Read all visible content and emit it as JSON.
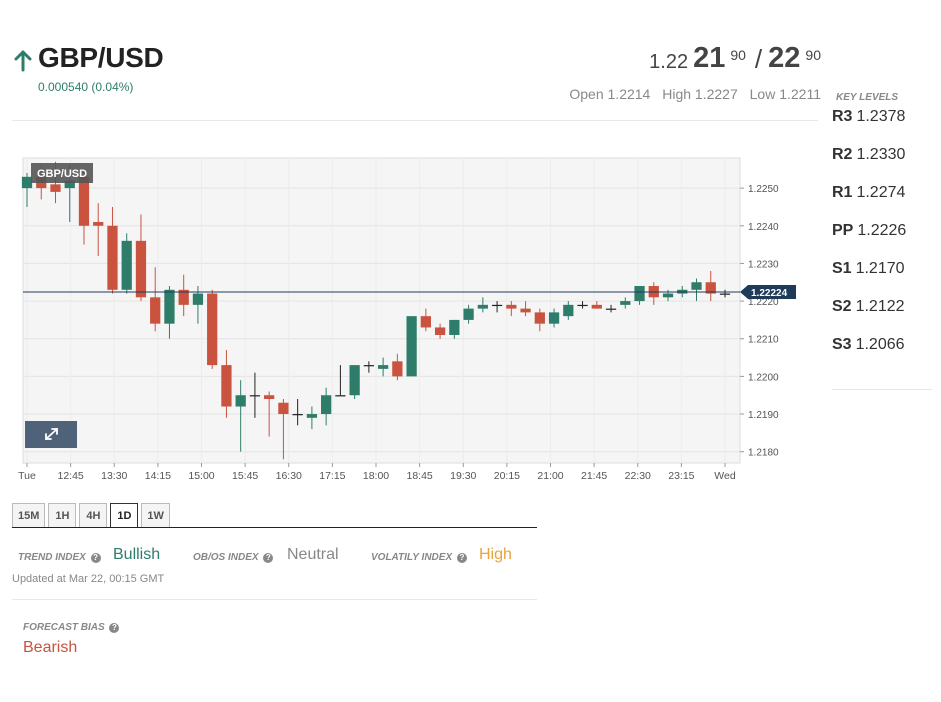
{
  "header": {
    "pair": "GBP/USD",
    "change": "0.000540 (0.04%)",
    "direction_icon": "arrow-up-icon",
    "up_color": "#2e7d6b"
  },
  "quote": {
    "bid_small": "1.22",
    "bid_big": "21",
    "bid_sup": "90",
    "sep": "/",
    "ask_big": "22",
    "ask_sup": "90"
  },
  "ohl": {
    "open": "Open 1.2214",
    "high": "High 1.2227",
    "low": "Low 1.2211"
  },
  "key_levels": {
    "title": "KEY LEVELS",
    "items": [
      {
        "name": "R3",
        "value": "1.2378"
      },
      {
        "name": "R2",
        "value": "1.2330"
      },
      {
        "name": "R1",
        "value": "1.2274"
      },
      {
        "name": "PP",
        "value": "1.2226"
      },
      {
        "name": "S1",
        "value": "1.2170"
      },
      {
        "name": "S2",
        "value": "1.2122"
      },
      {
        "name": "S3",
        "value": "1.2066"
      }
    ]
  },
  "chart_data": {
    "type": "candlestick",
    "title": "GBP/USD",
    "current_price": 1.22224,
    "current_price_label": "1.22224",
    "ylim": [
      1.2177,
      1.2258
    ],
    "y_ticks": [
      "1.2250",
      "1.2240",
      "1.2230",
      "1.2220",
      "1.2210",
      "1.2200",
      "1.2190",
      "1.2180"
    ],
    "x_labels": [
      "Tue",
      "12:45",
      "13:30",
      "14:15",
      "15:00",
      "15:45",
      "16:30",
      "17:15",
      "18:00",
      "18:45",
      "19:30",
      "20:15",
      "21:00",
      "21:45",
      "22:30",
      "23:15",
      "Wed"
    ],
    "grid": true,
    "colors": {
      "up": "#2e7d6b",
      "down": "#c9533f",
      "neutral": "#222222",
      "price_line": "#1f3b5a"
    },
    "candles": [
      {
        "o": 1.225,
        "h": 1.2254,
        "l": 1.2245,
        "c": 1.2253
      },
      {
        "o": 1.2253,
        "h": 1.2256,
        "l": 1.2247,
        "c": 1.225
      },
      {
        "o": 1.2251,
        "h": 1.2257,
        "l": 1.2246,
        "c": 1.2249
      },
      {
        "o": 1.225,
        "h": 1.2256,
        "l": 1.2241,
        "c": 1.2252
      },
      {
        "o": 1.2253,
        "h": 1.2255,
        "l": 1.2235,
        "c": 1.224
      },
      {
        "o": 1.2241,
        "h": 1.2246,
        "l": 1.2232,
        "c": 1.224
      },
      {
        "o": 1.224,
        "h": 1.2245,
        "l": 1.2222,
        "c": 1.2223
      },
      {
        "o": 1.2223,
        "h": 1.2238,
        "l": 1.2222,
        "c": 1.2236
      },
      {
        "o": 1.2236,
        "h": 1.2243,
        "l": 1.222,
        "c": 1.2221
      },
      {
        "o": 1.2221,
        "h": 1.2229,
        "l": 1.2212,
        "c": 1.2214
      },
      {
        "o": 1.2214,
        "h": 1.2224,
        "l": 1.221,
        "c": 1.2223
      },
      {
        "o": 1.2223,
        "h": 1.2227,
        "l": 1.2216,
        "c": 1.2219
      },
      {
        "o": 1.2219,
        "h": 1.2224,
        "l": 1.2214,
        "c": 1.2222
      },
      {
        "o": 1.2222,
        "h": 1.2223,
        "l": 1.2202,
        "c": 1.2203
      },
      {
        "o": 1.2203,
        "h": 1.2207,
        "l": 1.2189,
        "c": 1.2192
      },
      {
        "o": 1.2192,
        "h": 1.2199,
        "l": 1.218,
        "c": 1.2195
      },
      {
        "o": 1.2195,
        "h": 1.2201,
        "l": 1.2189,
        "c": 1.2195
      },
      {
        "o": 1.2195,
        "h": 1.2196,
        "l": 1.2184,
        "c": 1.2194
      },
      {
        "o": 1.2193,
        "h": 1.2194,
        "l": 1.2178,
        "c": 1.219
      },
      {
        "o": 1.219,
        "h": 1.2194,
        "l": 1.2187,
        "c": 1.219
      },
      {
        "o": 1.2189,
        "h": 1.2192,
        "l": 1.2186,
        "c": 1.219
      },
      {
        "o": 1.219,
        "h": 1.2197,
        "l": 1.2187,
        "c": 1.2195
      },
      {
        "o": 1.2195,
        "h": 1.2203,
        "l": 1.2195,
        "c": 1.2195
      },
      {
        "o": 1.2195,
        "h": 1.2203,
        "l": 1.2194,
        "c": 1.2203
      },
      {
        "o": 1.2203,
        "h": 1.2204,
        "l": 1.2201,
        "c": 1.2203
      },
      {
        "o": 1.2202,
        "h": 1.2205,
        "l": 1.22,
        "c": 1.2203
      },
      {
        "o": 1.2204,
        "h": 1.2206,
        "l": 1.2199,
        "c": 1.22
      },
      {
        "o": 1.22,
        "h": 1.2216,
        "l": 1.22,
        "c": 1.2216
      },
      {
        "o": 1.2216,
        "h": 1.2218,
        "l": 1.2212,
        "c": 1.2213
      },
      {
        "o": 1.2213,
        "h": 1.2214,
        "l": 1.221,
        "c": 1.2211
      },
      {
        "o": 1.2211,
        "h": 1.2215,
        "l": 1.221,
        "c": 1.2215
      },
      {
        "o": 1.2215,
        "h": 1.2219,
        "l": 1.2214,
        "c": 1.2218
      },
      {
        "o": 1.2218,
        "h": 1.2221,
        "l": 1.2217,
        "c": 1.2219
      },
      {
        "o": 1.2219,
        "h": 1.222,
        "l": 1.2217,
        "c": 1.2219
      },
      {
        "o": 1.2219,
        "h": 1.222,
        "l": 1.2216,
        "c": 1.2218
      },
      {
        "o": 1.2218,
        "h": 1.222,
        "l": 1.2216,
        "c": 1.2217
      },
      {
        "o": 1.2217,
        "h": 1.2218,
        "l": 1.2212,
        "c": 1.2214
      },
      {
        "o": 1.2214,
        "h": 1.2218,
        "l": 1.2213,
        "c": 1.2217
      },
      {
        "o": 1.2216,
        "h": 1.222,
        "l": 1.2215,
        "c": 1.2219
      },
      {
        "o": 1.2219,
        "h": 1.222,
        "l": 1.2218,
        "c": 1.2219
      },
      {
        "o": 1.2219,
        "h": 1.222,
        "l": 1.2218,
        "c": 1.2218
      },
      {
        "o": 1.2218,
        "h": 1.2219,
        "l": 1.2217,
        "c": 1.2218
      },
      {
        "o": 1.2219,
        "h": 1.2221,
        "l": 1.2218,
        "c": 1.222
      },
      {
        "o": 1.222,
        "h": 1.2224,
        "l": 1.2219,
        "c": 1.2224
      },
      {
        "o": 1.2224,
        "h": 1.2225,
        "l": 1.2219,
        "c": 1.2221
      },
      {
        "o": 1.2221,
        "h": 1.2223,
        "l": 1.222,
        "c": 1.2222
      },
      {
        "o": 1.2222,
        "h": 1.2224,
        "l": 1.2221,
        "c": 1.2223
      },
      {
        "o": 1.2223,
        "h": 1.2226,
        "l": 1.222,
        "c": 1.2225
      },
      {
        "o": 1.2225,
        "h": 1.2228,
        "l": 1.222,
        "c": 1.2222
      },
      {
        "o": 1.2222,
        "h": 1.2223,
        "l": 1.2221,
        "c": 1.2222
      }
    ]
  },
  "timeframes": [
    "15M",
    "1H",
    "4H",
    "1D",
    "1W"
  ],
  "active_timeframe": "1D",
  "indicators": {
    "trend_label": "TREND INDEX",
    "trend_value": "Bullish",
    "trend_color": "#2e7d6b",
    "obos_label": "OB/OS INDEX",
    "obos_value": "Neutral",
    "obos_color": "#888888",
    "volatility_label": "VOLATILY INDEX",
    "volatility_value": "High",
    "volatility_color": "#e8a33a",
    "help_icon": "question-circle-icon"
  },
  "updated": "Updated at Mar 22, 00:15 GMT",
  "forecast": {
    "label": "FORECAST BIAS",
    "value": "Bearish",
    "color": "#c9533f"
  }
}
